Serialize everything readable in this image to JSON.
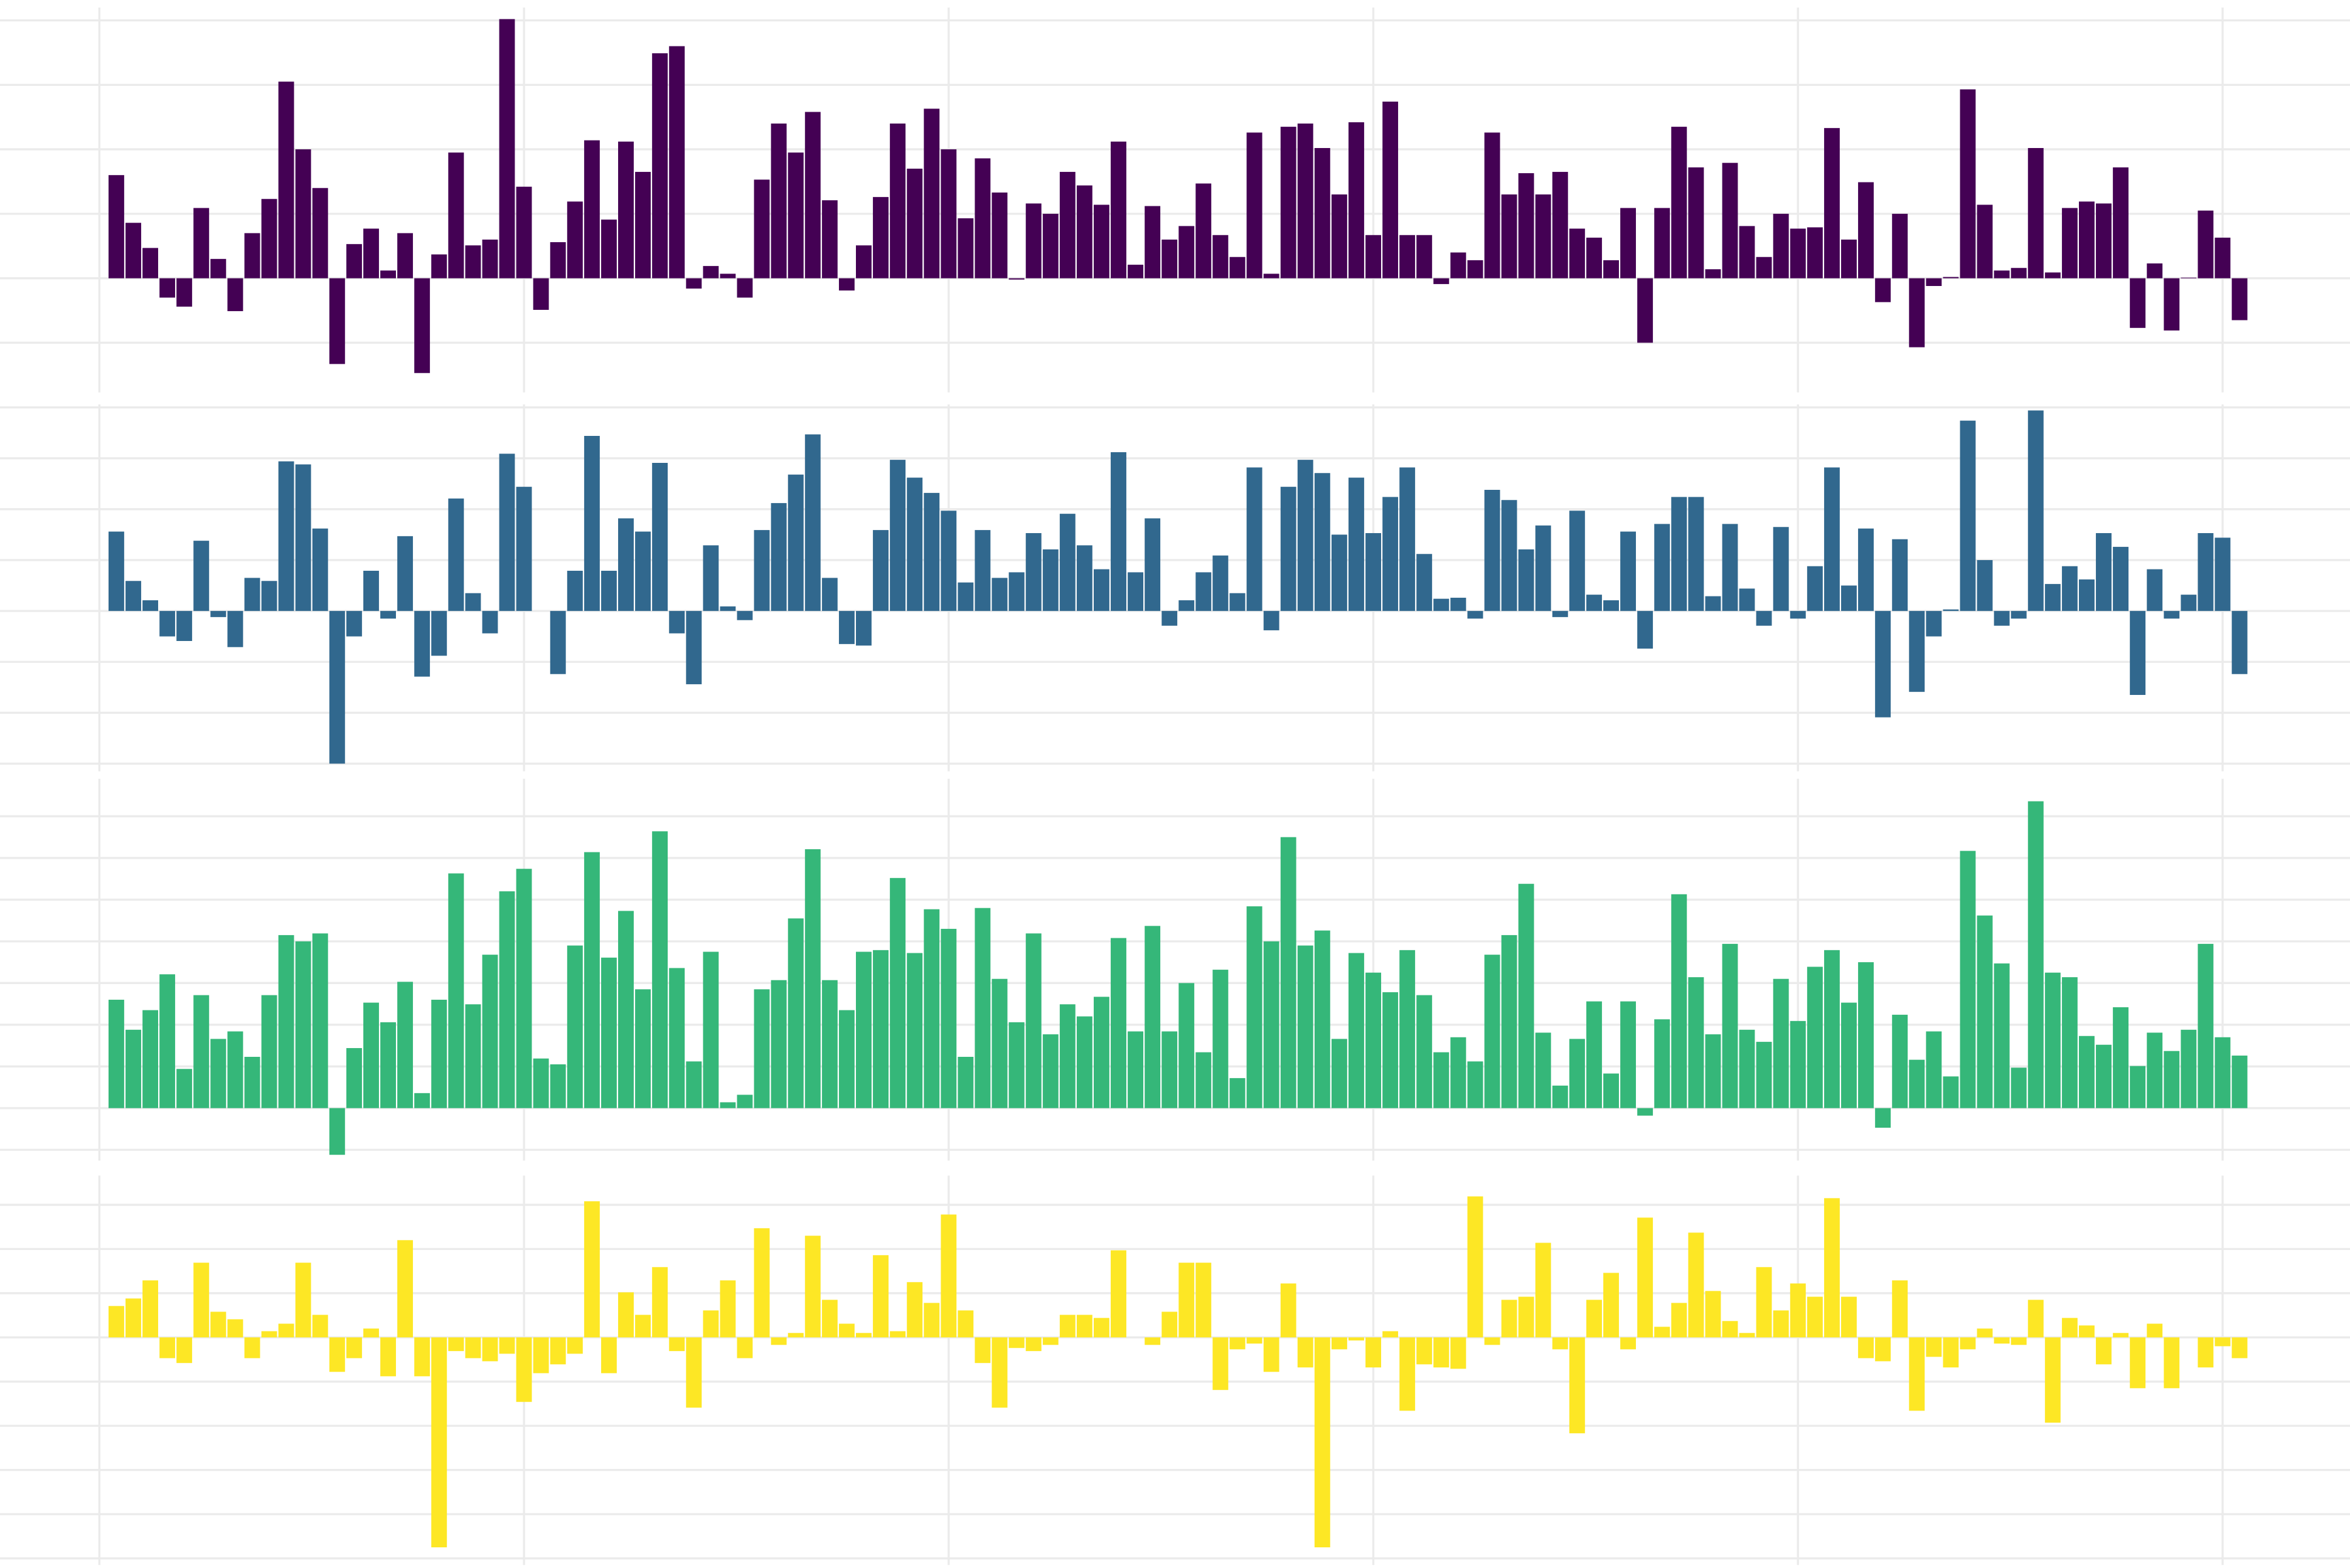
{
  "chart_data": [
    {
      "type": "bar",
      "color": "#440154",
      "grid": true,
      "x": [
        1,
        2,
        3,
        4,
        5,
        6,
        7,
        8,
        9,
        10,
        11,
        12,
        13,
        14,
        15,
        16,
        17,
        18,
        19,
        20,
        21,
        22,
        23,
        24,
        25,
        26,
        27,
        28,
        29,
        30,
        31,
        32,
        33,
        34,
        35,
        36,
        37,
        38,
        39,
        40,
        41,
        42,
        43,
        44,
        45,
        46,
        47,
        48,
        49,
        50,
        51,
        52,
        53,
        54,
        55,
        56,
        57,
        58,
        59,
        60,
        61,
        62,
        63,
        64,
        65,
        66,
        67,
        68,
        69,
        70,
        71,
        72,
        73,
        74,
        75,
        76,
        77,
        78,
        79,
        80,
        81,
        82,
        83,
        84,
        85,
        86,
        87,
        88,
        89,
        90,
        91,
        92,
        93,
        94,
        95,
        96,
        97,
        98,
        99,
        100,
        101,
        102,
        103,
        104,
        105,
        106,
        107,
        108,
        109,
        110,
        111,
        112,
        113,
        114,
        115,
        116,
        117,
        118,
        119,
        120,
        121,
        122,
        123,
        124,
        125,
        126
      ],
      "values": [
        1.6,
        0.86,
        0.47,
        -0.3,
        -0.44,
        1.09,
        0.3,
        -0.51,
        0.7,
        1.23,
        3.05,
        2.0,
        1.4,
        -1.33,
        0.53,
        0.77,
        0.12,
        0.7,
        -1.47,
        0.37,
        1.95,
        0.51,
        0.6,
        4.02,
        1.42,
        -0.49,
        0.56,
        1.19,
        2.14,
        0.91,
        2.12,
        1.65,
        3.49,
        3.6,
        -0.16,
        0.19,
        0.07,
        -0.3,
        1.53,
        2.4,
        1.95,
        2.58,
        1.21,
        -0.19,
        0.51,
        1.26,
        2.4,
        1.7,
        2.63,
        2.0,
        0.93,
        1.86,
        1.33,
        -0.02,
        1.16,
        1.0,
        1.65,
        1.44,
        1.14,
        2.12,
        0.21,
        1.12,
        0.6,
        0.81,
        1.47,
        0.67,
        0.33,
        2.26,
        0.07,
        2.35,
        2.4,
        2.02,
        1.3,
        2.42,
        0.67,
        2.74,
        0.67,
        0.67,
        -0.09,
        0.4,
        0.28,
        2.26,
        1.3,
        1.63,
        1.3,
        1.65,
        0.77,
        0.63,
        0.28,
        1.09,
        -1.0,
        1.09,
        2.35,
        1.72,
        0.14,
        1.79,
        0.81,
        0.33,
        1.0,
        0.77,
        0.79,
        2.33,
        0.6,
        1.49,
        -0.37,
        1.0,
        -1.07,
        -0.12,
        0.02,
        2.93,
        1.14,
        0.12,
        0.16,
        2.02,
        0.09,
        1.09,
        1.19,
        1.16,
        1.72,
        -0.77,
        0.23,
        -0.81,
        0.01,
        1.05,
        0.63,
        -0.65
      ],
      "xlim": [
        -5.85,
        132.5
      ],
      "xticks": [
        0,
        25,
        50,
        75,
        100,
        125
      ],
      "ylim": [
        -1.77,
        4.2
      ],
      "yticks": [
        -1,
        0,
        1,
        2,
        3,
        4
      ]
    },
    {
      "type": "bar",
      "color": "#31688e",
      "grid": true,
      "x": [
        1,
        2,
        3,
        4,
        5,
        6,
        7,
        8,
        9,
        10,
        11,
        12,
        13,
        14,
        15,
        16,
        17,
        18,
        19,
        20,
        21,
        22,
        23,
        24,
        25,
        26,
        27,
        28,
        29,
        30,
        31,
        32,
        33,
        34,
        35,
        36,
        37,
        38,
        39,
        40,
        41,
        42,
        43,
        44,
        45,
        46,
        47,
        48,
        49,
        50,
        51,
        52,
        53,
        54,
        55,
        56,
        57,
        58,
        59,
        60,
        61,
        62,
        63,
        64,
        65,
        66,
        67,
        68,
        69,
        70,
        71,
        72,
        73,
        74,
        75,
        76,
        77,
        78,
        79,
        80,
        81,
        82,
        83,
        84,
        85,
        86,
        87,
        88,
        89,
        90,
        91,
        92,
        93,
        94,
        95,
        96,
        97,
        98,
        99,
        100,
        101,
        102,
        103,
        104,
        105,
        106,
        107,
        108,
        109,
        110,
        111,
        112,
        113,
        114,
        115,
        116,
        117,
        118,
        119,
        120,
        121,
        122,
        123,
        124,
        125,
        126
      ],
      "values": [
        1.56,
        0.59,
        0.21,
        -0.5,
        -0.59,
        1.38,
        -0.12,
        -0.71,
        0.65,
        0.59,
        2.94,
        2.88,
        1.62,
        -3.0,
        -0.5,
        0.79,
        -0.15,
        1.47,
        -1.29,
        -0.88,
        2.21,
        0.35,
        -0.44,
        3.09,
        2.44,
        0,
        -1.24,
        0.79,
        3.44,
        0.79,
        1.82,
        1.56,
        2.91,
        -0.44,
        -1.44,
        1.29,
        0.09,
        -0.18,
        1.59,
        2.12,
        2.68,
        3.47,
        0.65,
        -0.65,
        -0.68,
        1.59,
        2.97,
        2.62,
        2.32,
        1.97,
        0.56,
        1.59,
        0.65,
        0.76,
        1.53,
        1.21,
        1.91,
        1.29,
        0.82,
        3.12,
        0.76,
        1.82,
        -0.29,
        0.21,
        0.76,
        1.09,
        0.35,
        2.82,
        -0.38,
        2.44,
        2.97,
        2.71,
        1.5,
        2.62,
        1.53,
        2.24,
        2.82,
        1.12,
        0.24,
        0.26,
        -0.15,
        2.38,
        2.18,
        1.21,
        1.68,
        -0.12,
        1.97,
        0.32,
        0.21,
        1.56,
        -0.74,
        1.71,
        2.24,
        2.24,
        0.29,
        1.71,
        0.44,
        -0.29,
        1.65,
        -0.15,
        0.88,
        2.82,
        0.5,
        1.62,
        -2.09,
        1.41,
        -1.59,
        -0.5,
        0.03,
        3.74,
        1.0,
        -0.29,
        -0.15,
        3.94,
        0.53,
        0.88,
        0.62,
        1.53,
        1.26,
        -1.65,
        0.82,
        -0.15,
        0.32,
        1.53,
        1.44,
        -1.24
      ],
      "xlim": [
        -5.85,
        132.5
      ],
      "xticks": [
        0,
        25,
        50,
        75,
        100,
        125
      ],
      "ylim": [
        -3.15,
        4.06
      ],
      "yticks": [
        -3,
        -2,
        -1,
        0,
        1,
        2,
        3,
        4
      ]
    },
    {
      "type": "bar",
      "color": "#35b779",
      "grid": true,
      "x": [
        1,
        2,
        3,
        4,
        5,
        6,
        7,
        8,
        9,
        10,
        11,
        12,
        13,
        14,
        15,
        16,
        17,
        18,
        19,
        20,
        21,
        22,
        23,
        24,
        25,
        26,
        27,
        28,
        29,
        30,
        31,
        32,
        33,
        34,
        35,
        36,
        37,
        38,
        39,
        40,
        41,
        42,
        43,
        44,
        45,
        46,
        47,
        48,
        49,
        50,
        51,
        52,
        53,
        54,
        55,
        56,
        57,
        58,
        59,
        60,
        61,
        62,
        63,
        64,
        65,
        66,
        67,
        68,
        69,
        70,
        71,
        72,
        73,
        74,
        75,
        76,
        77,
        78,
        79,
        80,
        81,
        82,
        83,
        84,
        85,
        86,
        87,
        88,
        89,
        90,
        91,
        92,
        93,
        94,
        95,
        96,
        97,
        98,
        99,
        100,
        101,
        102,
        103,
        104,
        105,
        106,
        107,
        108,
        109,
        110,
        111,
        112,
        113,
        114,
        115,
        116,
        117,
        118,
        119,
        120,
        121,
        122,
        123,
        124,
        125,
        126
      ],
      "values": [
        2.6,
        1.88,
        2.35,
        3.21,
        0.94,
        2.71,
        1.66,
        1.84,
        1.23,
        2.71,
        4.15,
        4.0,
        4.19,
        -1.12,
        1.44,
        2.53,
        2.06,
        3.03,
        0.36,
        2.6,
        5.63,
        2.49,
        3.68,
        5.2,
        5.74,
        1.19,
        1.05,
        3.9,
        6.14,
        3.61,
        4.73,
        2.85,
        6.64,
        3.36,
        1.12,
        3.75,
        0.14,
        0.32,
        2.85,
        3.07,
        4.55,
        6.21,
        3.07,
        2.35,
        3.75,
        3.79,
        5.52,
        3.72,
        4.77,
        4.3,
        1.23,
        4.8,
        3.1,
        2.06,
        4.19,
        1.77,
        2.49,
        2.2,
        2.67,
        4.08,
        1.84,
        4.37,
        1.84,
        3.0,
        1.34,
        3.32,
        0.72,
        4.84,
        4.0,
        6.5,
        3.9,
        4.26,
        1.66,
        3.72,
        3.25,
        2.78,
        3.79,
        2.71,
        1.34,
        1.7,
        1.12,
        3.68,
        4.15,
        5.38,
        1.81,
        0.54,
        1.66,
        2.56,
        0.83,
        2.56,
        -0.18,
        2.13,
        5.13,
        3.14,
        1.77,
        3.94,
        1.88,
        1.59,
        3.1,
        2.09,
        3.39,
        3.79,
        2.53,
        3.5,
        -0.47,
        2.24,
        1.16,
        1.84,
        0.76,
        6.17,
        4.62,
        3.47,
        0.97,
        7.36,
        3.25,
        3.14,
        1.73,
        1.52,
        2.42,
        1.01,
        1.81,
        1.37,
        1.88,
        3.94,
        1.7,
        1.26
      ],
      "xlim": [
        -5.85,
        132.5
      ],
      "xticks": [
        0,
        25,
        50,
        75,
        100,
        125
      ],
      "ylim": [
        -1.26,
        7.9
      ],
      "yticks": [
        -1,
        0,
        1,
        2,
        3,
        4,
        5,
        6,
        7
      ]
    },
    {
      "type": "bar",
      "color": "#fde725",
      "grid": true,
      "x": [
        1,
        2,
        3,
        4,
        5,
        6,
        7,
        8,
        9,
        10,
        11,
        12,
        13,
        14,
        15,
        16,
        17,
        18,
        19,
        20,
        21,
        22,
        23,
        24,
        25,
        26,
        27,
        28,
        29,
        30,
        31,
        32,
        33,
        34,
        35,
        36,
        37,
        38,
        39,
        40,
        41,
        42,
        43,
        44,
        45,
        46,
        47,
        48,
        49,
        50,
        51,
        52,
        53,
        54,
        55,
        56,
        57,
        58,
        59,
        60,
        61,
        62,
        63,
        64,
        65,
        66,
        67,
        68,
        69,
        70,
        71,
        72,
        73,
        74,
        75,
        76,
        77,
        78,
        79,
        80,
        81,
        82,
        83,
        84,
        85,
        86,
        87,
        88,
        89,
        90,
        91,
        92,
        93,
        94,
        95,
        96,
        97,
        98,
        99,
        100,
        101,
        102,
        103,
        104,
        105,
        106,
        107,
        108,
        109,
        110,
        111,
        112,
        113,
        114,
        115,
        116,
        117,
        118,
        119,
        120,
        121,
        122,
        123,
        124,
        125,
        126
      ],
      "values": [
        0.71,
        0.88,
        1.29,
        -0.47,
        -0.58,
        1.69,
        0.58,
        0.41,
        -0.47,
        0.14,
        0.31,
        1.69,
        0.51,
        -0.78,
        -0.47,
        0.2,
        -0.88,
        2.2,
        -0.88,
        -4.75,
        -0.31,
        -0.47,
        -0.54,
        -0.37,
        -1.46,
        -0.81,
        -0.61,
        -0.37,
        3.08,
        -0.81,
        1.02,
        0.51,
        1.59,
        -0.31,
        -1.59,
        0.61,
        1.29,
        -0.47,
        2.47,
        -0.17,
        0.1,
        2.3,
        0.85,
        0.31,
        0.1,
        1.86,
        0.14,
        1.25,
        0.78,
        2.78,
        0.61,
        -0.58,
        -1.59,
        -0.24,
        -0.31,
        -0.17,
        0.51,
        0.51,
        0.44,
        1.97,
        0,
        -0.17,
        0.58,
        1.69,
        1.69,
        -1.19,
        -0.27,
        -0.14,
        -0.78,
        1.22,
        -0.68,
        -4.75,
        -0.27,
        -0.07,
        -0.68,
        0.14,
        -1.66,
        -0.61,
        -0.68,
        -0.71,
        3.19,
        -0.17,
        0.85,
        0.92,
        2.14,
        -0.27,
        -2.17,
        0.85,
        1.46,
        -0.27,
        2.71,
        0.24,
        0.78,
        2.37,
        1.05,
        0.37,
        0.1,
        1.59,
        0.61,
        1.22,
        0.92,
        3.15,
        0.92,
        -0.47,
        -0.54,
        1.29,
        -1.66,
        -0.44,
        -0.68,
        -0.27,
        0.2,
        -0.14,
        -0.17,
        0.85,
        -1.93,
        0.44,
        0.27,
        -0.61,
        0.1,
        -1.15,
        0.31,
        -1.15,
        0,
        -0.68,
        -0.2,
        -0.47
      ],
      "xlim": [
        -5.85,
        132.5
      ],
      "xticks": [
        0,
        25,
        50,
        75,
        100,
        125
      ],
      "ylim": [
        -5.15,
        3.66
      ],
      "yticks": [
        -5,
        -4,
        -3,
        -2,
        -1,
        0,
        1,
        2,
        3
      ]
    }
  ]
}
